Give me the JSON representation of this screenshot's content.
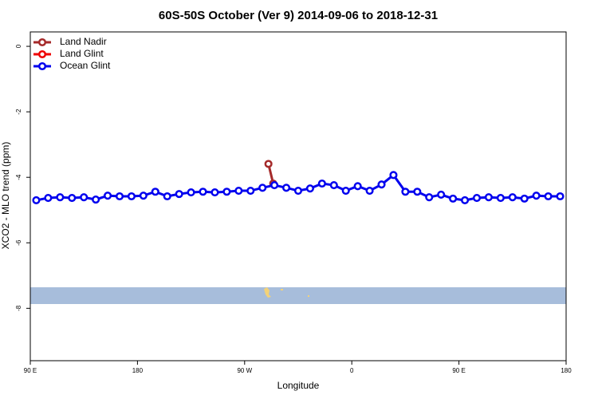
{
  "chart_data": {
    "type": "line",
    "title": "60S-50S October (Ver 9)   2014-09-06 to 2018-12-31",
    "x_label": "Longitude",
    "y_label": "XCO2 - MLO trend (ppm)",
    "xlim": [
      90,
      540
    ],
    "ylim": [
      -9.6,
      0.44
    ],
    "xticks": [
      {
        "value": 90,
        "label": "90 E"
      },
      180,
      {
        "value": 270,
        "label": "90 W"
      },
      {
        "value": 360,
        "label": "0"
      },
      {
        "value": 450,
        "label": "90 E"
      },
      {
        "value": 540,
        "label": "180"
      }
    ],
    "yticks": [
      0,
      -2,
      -4,
      -6,
      -8
    ],
    "legend": "top-left",
    "series": [
      {
        "name": "Land Nadir",
        "color": "#a52a2a",
        "x": [
          290,
          294
        ],
        "values": [
          -3.59,
          -4.19
        ]
      },
      {
        "name": "Land Glint",
        "color": "#ee0000",
        "x": [],
        "values": []
      },
      {
        "name": "Ocean Glint",
        "color": "#0000ee",
        "x": [
          95,
          105,
          115,
          125,
          135,
          145,
          155,
          165,
          175,
          185,
          195,
          205,
          215,
          225,
          235,
          245,
          255,
          265,
          275,
          285,
          295,
          305,
          315,
          325,
          335,
          345,
          355,
          365,
          375,
          385,
          395,
          405,
          415,
          425,
          435,
          445,
          455,
          465,
          475,
          485,
          495,
          505,
          515,
          525,
          535
        ],
        "values": [
          -4.7,
          -4.63,
          -4.61,
          -4.63,
          -4.61,
          -4.68,
          -4.56,
          -4.58,
          -4.58,
          -4.56,
          -4.44,
          -4.58,
          -4.51,
          -4.46,
          -4.44,
          -4.46,
          -4.44,
          -4.41,
          -4.41,
          -4.32,
          -4.24,
          -4.32,
          -4.41,
          -4.34,
          -4.19,
          -4.24,
          -4.41,
          -4.27,
          -4.41,
          -4.22,
          -3.93,
          -4.44,
          -4.44,
          -4.61,
          -4.53,
          -4.65,
          -4.7,
          -4.63,
          -4.61,
          -4.63,
          -4.61,
          -4.65,
          -4.56,
          -4.58,
          -4.58
        ]
      }
    ]
  }
}
